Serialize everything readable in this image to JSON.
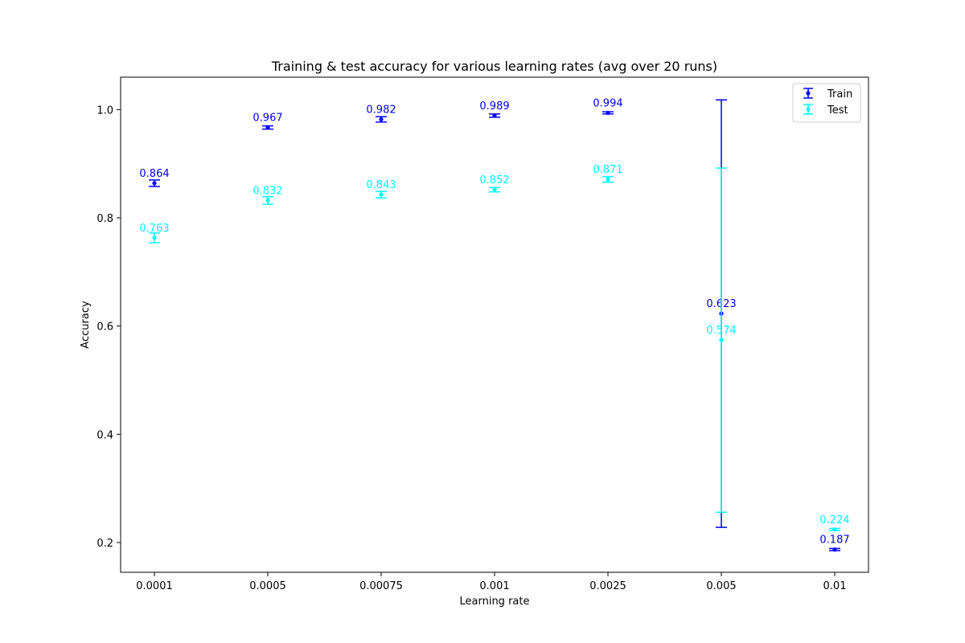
{
  "chart_data": {
    "type": "scatter",
    "title": "Training & test accuracy for various learning rates (avg over 20 runs)",
    "xlabel": "Learning rate",
    "ylabel": "Accuracy",
    "categories": [
      "0.0001",
      "0.0005",
      "0.00075",
      "0.001",
      "0.0025",
      "0.005",
      "0.01"
    ],
    "ylim": [
      0.145,
      1.06
    ],
    "yticks": [
      "0.2",
      "0.4",
      "0.6",
      "0.8",
      "1.0"
    ],
    "grid": false,
    "legend_position": "top-right",
    "series": [
      {
        "name": "Train",
        "color": "#0000ff",
        "values": [
          0.864,
          0.967,
          0.982,
          0.989,
          0.994,
          0.623,
          0.187
        ],
        "errors": [
          0.006,
          0.003,
          0.005,
          0.003,
          0.002,
          0.395,
          0.002
        ],
        "labels": [
          "0.864",
          "0.967",
          "0.982",
          "0.989",
          "0.994",
          "0.623",
          "0.187"
        ]
      },
      {
        "name": "Test",
        "color": "#00ffff",
        "values": [
          0.763,
          0.832,
          0.843,
          0.852,
          0.871,
          0.574,
          0.224
        ],
        "errors": [
          0.009,
          0.007,
          0.006,
          0.004,
          0.005,
          0.318,
          0.002
        ],
        "labels": [
          "0.763",
          "0.832",
          "0.843",
          "0.852",
          "0.871",
          "0.574",
          "0.224"
        ]
      }
    ]
  }
}
